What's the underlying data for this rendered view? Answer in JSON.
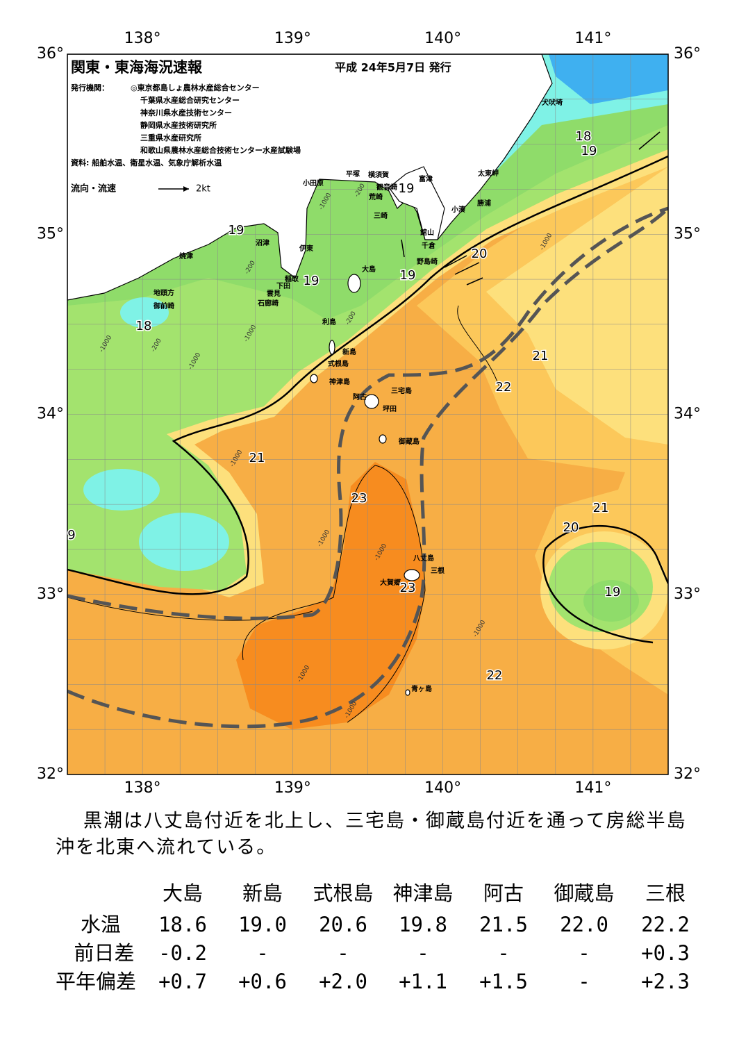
{
  "header": {
    "title": "関東・東海海況速報",
    "date": "平成 24年5月7日 発行",
    "issuer_label": "発行機関：",
    "issuers": [
      "◎東京都島しょ農林水産総合センター",
      "千葉県水産総合研究センター",
      "神奈川県水産技術センター",
      "静岡県水産技術研究所",
      "三重県水産研究所",
      "和歌山県農林水産総合技術センター水産試験場"
    ],
    "source": "資料: 船舶水温、衛星水温、気象庁解析水温",
    "legend_label": "流向・流速",
    "legend_scale": "2kt"
  },
  "map": {
    "lon_labels": [
      "138°",
      "139°",
      "140°",
      "141°"
    ],
    "lat_labels": [
      "36°",
      "35°",
      "34°",
      "33°",
      "32°"
    ],
    "places": [
      "犬吠埼",
      "太東岬",
      "勝浦",
      "小湊",
      "富津",
      "横須賀",
      "観音崎",
      "荒崎",
      "三崎",
      "平塚",
      "小田原",
      "館山",
      "千倉",
      "野島崎",
      "沼津",
      "伊東",
      "焼津",
      "稲取",
      "下田",
      "雲見",
      "石廊崎",
      "地頭方",
      "御前崎",
      "大島",
      "利島",
      "新島",
      "式根島",
      "神津島",
      "三宅島",
      "阿古",
      "坪田",
      "御蔵島",
      "八丈島",
      "三根",
      "大賀郷",
      "青ヶ島"
    ],
    "isotherm_labels": [
      "19",
      "19",
      "18",
      "19",
      "19",
      "18",
      "19",
      "20",
      "21",
      "22",
      "21",
      "23",
      "21",
      "20",
      "23",
      "19",
      "22",
      "9"
    ],
    "depth_labels": [
      "-200",
      "-1000",
      "-200",
      "-1000",
      "-200",
      "-1000",
      "-1000",
      "-200",
      "-1000",
      "-1000",
      "-1000",
      "-1000",
      "-1000",
      "-1000",
      "-1000"
    ]
  },
  "summary": {
    "lines": [
      "黒潮は八丈島付近を北上し、三宅島・御蔵島付近を通って房総半島",
      "沖を北東へ流れている。"
    ]
  },
  "table": {
    "columns": [
      "大島",
      "新島",
      "式根島",
      "神津島",
      "阿古",
      "御蔵島",
      "三根"
    ],
    "rows": [
      {
        "label": "水温",
        "cells": [
          "18.6",
          "19.0",
          "20.6",
          "19.8",
          "21.5",
          "22.0",
          "22.2"
        ]
      },
      {
        "label": "前日差",
        "cells": [
          "-0.2",
          "-",
          "-",
          "-",
          "-",
          "-",
          "+0.3"
        ]
      },
      {
        "label": "平年偏差",
        "cells": [
          "+0.7",
          "+0.6",
          "+2.0",
          "+1.1",
          "+1.5",
          "-",
          "+2.3"
        ]
      }
    ]
  }
}
